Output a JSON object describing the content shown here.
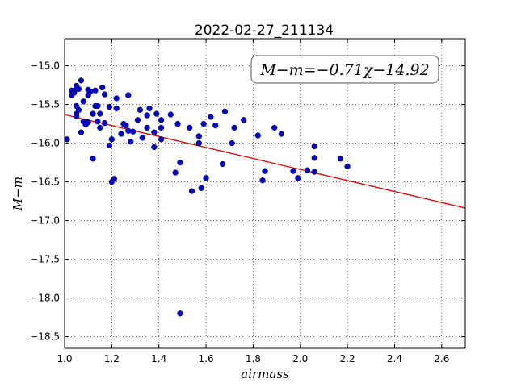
{
  "chart_data": {
    "type": "scatter",
    "title": "2022-02-27_211134",
    "xlabel": "airmass",
    "ylabel": "M−m",
    "xlim": [
      1.0,
      2.7
    ],
    "ylim": [
      -18.65,
      -14.65
    ],
    "x_ticks": [
      1.0,
      1.2,
      1.4,
      1.6,
      1.8,
      2.0,
      2.2,
      2.4,
      2.6
    ],
    "x_tick_labels": [
      "1.0",
      "1.2",
      "1.4",
      "1.6",
      "1.8",
      "2.0",
      "2.2",
      "2.4",
      "2.6"
    ],
    "y_ticks": [
      -15.0,
      -15.5,
      -16.0,
      -16.5,
      -17.0,
      -17.5,
      -18.0,
      -18.5
    ],
    "y_tick_labels": [
      "−15.0",
      "−15.5",
      "−16.0",
      "−16.5",
      "−17.0",
      "−17.5",
      "−18.0",
      "−18.5"
    ],
    "grid": true,
    "marker_color": "#0000cc",
    "fit_line_color": "#dd0000",
    "fit": {
      "slope": -0.71,
      "intercept": -14.92
    },
    "annotation": "M−m=−0.71χ−14.92",
    "points": [
      [
        1.01,
        -15.95
      ],
      [
        1.03,
        -15.32
      ],
      [
        1.03,
        -15.38
      ],
      [
        1.04,
        -15.35
      ],
      [
        1.05,
        -15.26
      ],
      [
        1.05,
        -15.3
      ],
      [
        1.05,
        -15.52
      ],
      [
        1.05,
        -15.62
      ],
      [
        1.05,
        -15.65
      ],
      [
        1.06,
        -15.57
      ],
      [
        1.06,
        -15.3
      ],
      [
        1.07,
        -15.19
      ],
      [
        1.08,
        -15.46
      ],
      [
        1.07,
        -15.86
      ],
      [
        1.08,
        -15.72
      ],
      [
        1.09,
        -15.76
      ],
      [
        1.1,
        -15.38
      ],
      [
        1.1,
        -15.73
      ],
      [
        1.1,
        -15.31
      ],
      [
        1.11,
        -15.33
      ],
      [
        1.13,
        -15.32
      ],
      [
        1.12,
        -15.62
      ],
      [
        1.13,
        -15.52
      ],
      [
        1.14,
        -15.52
      ],
      [
        1.14,
        -15.72
      ],
      [
        1.15,
        -15.62
      ],
      [
        1.15,
        -15.8
      ],
      [
        1.16,
        -15.28
      ],
      [
        1.17,
        -15.37
      ],
      [
        1.17,
        -15.74
      ],
      [
        1.12,
        -16.2
      ],
      [
        1.19,
        -15.53
      ],
      [
        1.19,
        -16.03
      ],
      [
        1.2,
        -15.95
      ],
      [
        1.2,
        -16.5
      ],
      [
        1.21,
        -16.46
      ],
      [
        1.22,
        -15.55
      ],
      [
        1.22,
        -15.42
      ],
      [
        1.24,
        -15.88
      ],
      [
        1.25,
        -15.75
      ],
      [
        1.26,
        -15.77
      ],
      [
        1.27,
        -15.38
      ],
      [
        1.27,
        -15.84
      ],
      [
        1.28,
        -15.98
      ],
      [
        1.29,
        -15.85
      ],
      [
        1.31,
        -15.7
      ],
      [
        1.32,
        -15.57
      ],
      [
        1.33,
        -15.93
      ],
      [
        1.35,
        -15.8
      ],
      [
        1.35,
        -15.64
      ],
      [
        1.36,
        -15.55
      ],
      [
        1.38,
        -15.86
      ],
      [
        1.38,
        -16.05
      ],
      [
        1.39,
        -15.62
      ],
      [
        1.41,
        -15.7
      ],
      [
        1.41,
        -15.8
      ],
      [
        1.41,
        -15.95
      ],
      [
        1.45,
        -15.63
      ],
      [
        1.47,
        -16.38
      ],
      [
        1.48,
        -15.75
      ],
      [
        1.49,
        -16.25
      ],
      [
        1.49,
        -18.2
      ],
      [
        1.53,
        -15.8
      ],
      [
        1.54,
        -16.62
      ],
      [
        1.57,
        -15.91
      ],
      [
        1.57,
        -16.0
      ],
      [
        1.58,
        -16.58
      ],
      [
        1.59,
        -15.75
      ],
      [
        1.6,
        -16.45
      ],
      [
        1.62,
        -15.66
      ],
      [
        1.64,
        -15.77
      ],
      [
        1.67,
        -16.27
      ],
      [
        1.68,
        -15.59
      ],
      [
        1.71,
        -16.0
      ],
      [
        1.72,
        -15.8
      ],
      [
        1.76,
        -15.7
      ],
      [
        1.82,
        -15.9
      ],
      [
        1.84,
        -16.48
      ],
      [
        1.85,
        -16.36
      ],
      [
        1.89,
        -15.8
      ],
      [
        1.92,
        -15.88
      ],
      [
        1.97,
        -16.36
      ],
      [
        1.99,
        -16.45
      ],
      [
        2.03,
        -16.35
      ],
      [
        2.06,
        -16.04
      ],
      [
        2.06,
        -16.19
      ],
      [
        2.06,
        -16.37
      ],
      [
        2.17,
        -16.2
      ],
      [
        2.2,
        -16.3
      ]
    ]
  }
}
